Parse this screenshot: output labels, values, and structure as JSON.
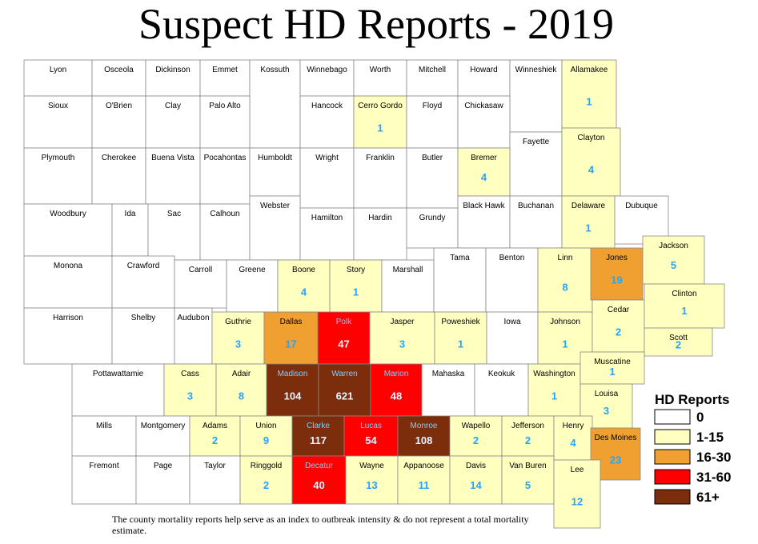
{
  "title": "Suspect HD Reports - 2019",
  "legend": {
    "title": "HD Reports",
    "items": [
      {
        "label": "0",
        "color": "#ffffff"
      },
      {
        "label": "1-15",
        "color": "#ffffc0"
      },
      {
        "label": "16-30",
        "color": "#f0a030"
      },
      {
        "label": "31-60",
        "color": "#ff0000"
      },
      {
        "label": "61+",
        "color": "#7b2d0c"
      }
    ]
  },
  "counties": [
    {
      "name": "Lyon"
    },
    {
      "name": "Osceola"
    },
    {
      "name": "Dickinson"
    },
    {
      "name": "Emmet"
    },
    {
      "name": "Kossuth"
    },
    {
      "name": "Winnebago"
    },
    {
      "name": "Worth"
    },
    {
      "name": "Mitchell"
    },
    {
      "name": "Howard"
    },
    {
      "name": "Winneshiek"
    },
    {
      "name": "Allamakee",
      "value": 1
    },
    {
      "name": "Sioux"
    },
    {
      "name": "O'Brien"
    },
    {
      "name": "Clay"
    },
    {
      "name": "Palo Alto"
    },
    {
      "name": "Hancock"
    },
    {
      "name": "Cerro Gordo",
      "value": 1
    },
    {
      "name": "Floyd"
    },
    {
      "name": "Chickasaw"
    },
    {
      "name": "Fayette"
    },
    {
      "name": "Clayton",
      "value": 4
    },
    {
      "name": "Plymouth"
    },
    {
      "name": "Cherokee"
    },
    {
      "name": "Buena Vista"
    },
    {
      "name": "Pocahontas"
    },
    {
      "name": "Humboldt"
    },
    {
      "name": "Wright"
    },
    {
      "name": "Franklin"
    },
    {
      "name": "Butler"
    },
    {
      "name": "Bremer",
      "value": 4
    },
    {
      "name": "Woodbury"
    },
    {
      "name": "Ida"
    },
    {
      "name": "Sac"
    },
    {
      "name": "Calhoun"
    },
    {
      "name": "Webster"
    },
    {
      "name": "Hamilton"
    },
    {
      "name": "Hardin"
    },
    {
      "name": "Grundy"
    },
    {
      "name": "Black Hawk"
    },
    {
      "name": "Buchanan"
    },
    {
      "name": "Delaware",
      "value": 1
    },
    {
      "name": "Dubuque"
    },
    {
      "name": "Monona"
    },
    {
      "name": "Crawford"
    },
    {
      "name": "Carroll"
    },
    {
      "name": "Greene"
    },
    {
      "name": "Boone",
      "value": 4
    },
    {
      "name": "Story",
      "value": 1
    },
    {
      "name": "Marshall"
    },
    {
      "name": "Tama"
    },
    {
      "name": "Benton"
    },
    {
      "name": "Linn",
      "value": 8
    },
    {
      "name": "Jones",
      "value": 19
    },
    {
      "name": "Jackson",
      "value": 5
    },
    {
      "name": "Harrison"
    },
    {
      "name": "Shelby"
    },
    {
      "name": "Audubon"
    },
    {
      "name": "Guthrie",
      "value": 3
    },
    {
      "name": "Dallas",
      "value": 17
    },
    {
      "name": "Polk",
      "value": 47
    },
    {
      "name": "Jasper",
      "value": 3
    },
    {
      "name": "Poweshiek",
      "value": 1
    },
    {
      "name": "Iowa"
    },
    {
      "name": "Johnson",
      "value": 1
    },
    {
      "name": "Cedar",
      "value": 2
    },
    {
      "name": "Clinton",
      "value": 1
    },
    {
      "name": "Scott",
      "value": 2
    },
    {
      "name": "Pottawattamie"
    },
    {
      "name": "Cass",
      "value": 3
    },
    {
      "name": "Adair",
      "value": 8
    },
    {
      "name": "Madison",
      "value": 104
    },
    {
      "name": "Warren",
      "value": 621
    },
    {
      "name": "Marion",
      "value": 48
    },
    {
      "name": "Mahaska"
    },
    {
      "name": "Keokuk"
    },
    {
      "name": "Washington",
      "value": 1
    },
    {
      "name": "Muscatine",
      "value": 1
    },
    {
      "name": "Louisa",
      "value": 3
    },
    {
      "name": "Mills"
    },
    {
      "name": "Montgomery"
    },
    {
      "name": "Adams",
      "value": 2
    },
    {
      "name": "Union",
      "value": 9
    },
    {
      "name": "Clarke",
      "value": 117
    },
    {
      "name": "Lucas",
      "value": 54
    },
    {
      "name": "Monroe",
      "value": 108
    },
    {
      "name": "Wapello",
      "value": 2
    },
    {
      "name": "Jefferson",
      "value": 2
    },
    {
      "name": "Henry",
      "value": 4
    },
    {
      "name": "Des Moines",
      "value": 23
    },
    {
      "name": "Fremont"
    },
    {
      "name": "Page"
    },
    {
      "name": "Taylor"
    },
    {
      "name": "Ringgold",
      "value": 2
    },
    {
      "name": "Decatur",
      "value": 40
    },
    {
      "name": "Wayne",
      "value": 13
    },
    {
      "name": "Appanoose",
      "value": 11
    },
    {
      "name": "Davis",
      "value": 14
    },
    {
      "name": "Van Buren",
      "value": 5
    },
    {
      "name": "Lee",
      "value": 12
    }
  ],
  "footnote": "The county mortality reports help serve as an index to outbreak intensity & do not represent a total mortality estimate."
}
